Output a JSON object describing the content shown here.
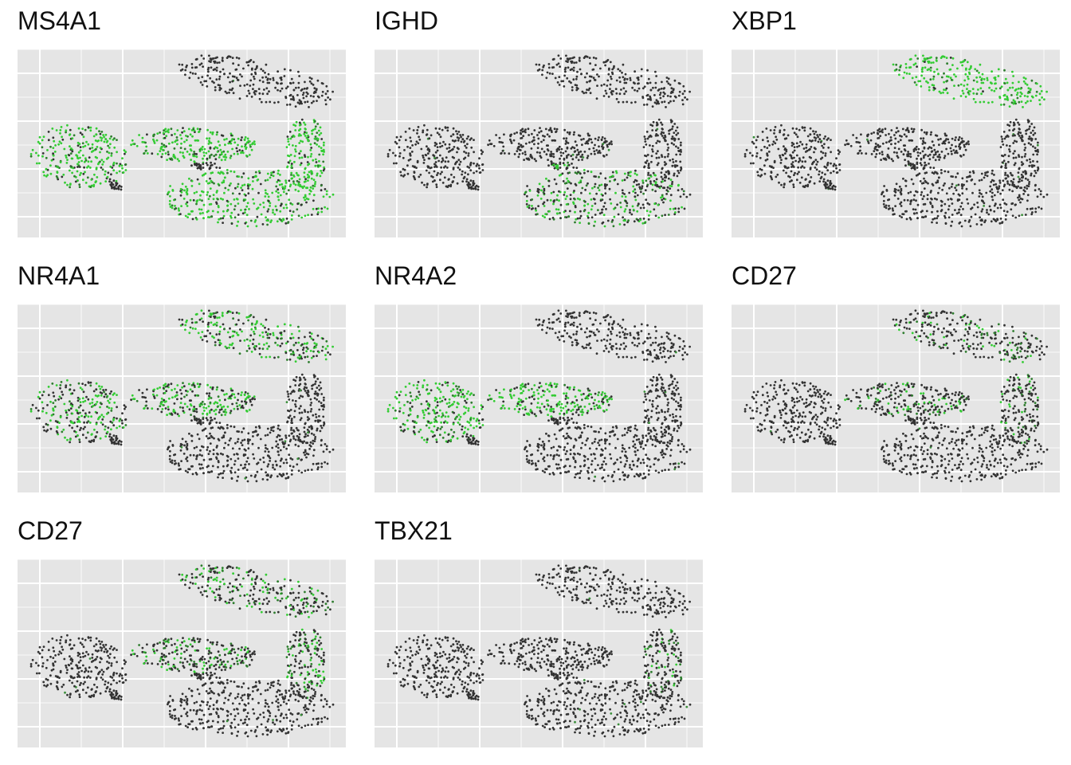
{
  "colors": {
    "panel_background": "#e5e5e5",
    "grid": "#ffffff",
    "low_expression": "#333333",
    "high_expression": "#33cc33"
  },
  "chart_data": [
    {
      "type": "scatter",
      "title": "MS4A1",
      "grid": true,
      "legend": "none",
      "high_regions": [
        "left-cluster",
        "middle-band",
        "right-arc",
        "lower-blob"
      ],
      "high_fraction": 0.7
    },
    {
      "type": "scatter",
      "title": "IGHD",
      "grid": true,
      "legend": "none",
      "high_regions": [
        "lower-blob",
        "center-patch"
      ],
      "high_fraction": 0.35
    },
    {
      "type": "scatter",
      "title": "XBP1",
      "grid": true,
      "legend": "none",
      "high_regions": [
        "top-island"
      ],
      "high_fraction": 0.8
    },
    {
      "type": "scatter",
      "title": "NR4A1",
      "grid": true,
      "legend": "none",
      "high_regions": [
        "left-cluster",
        "middle-band",
        "top-island"
      ],
      "high_fraction": 0.45
    },
    {
      "type": "scatter",
      "title": "NR4A2",
      "grid": true,
      "legend": "none",
      "high_regions": [
        "left-cluster",
        "middle-band"
      ],
      "high_fraction": 0.6
    },
    {
      "type": "scatter",
      "title": "CD27",
      "grid": true,
      "legend": "none",
      "high_regions": [
        "middle-band",
        "top-island",
        "right-arc"
      ],
      "high_fraction": 0.15
    },
    {
      "type": "scatter",
      "title": "CD27",
      "grid": true,
      "legend": "none",
      "high_regions": [
        "top-island",
        "middle-band",
        "right-arc"
      ],
      "high_fraction": 0.25
    },
    {
      "type": "scatter",
      "title": "TBX21",
      "grid": true,
      "legend": "none",
      "high_regions": [
        "right-arc"
      ],
      "high_fraction": 0.05
    }
  ]
}
